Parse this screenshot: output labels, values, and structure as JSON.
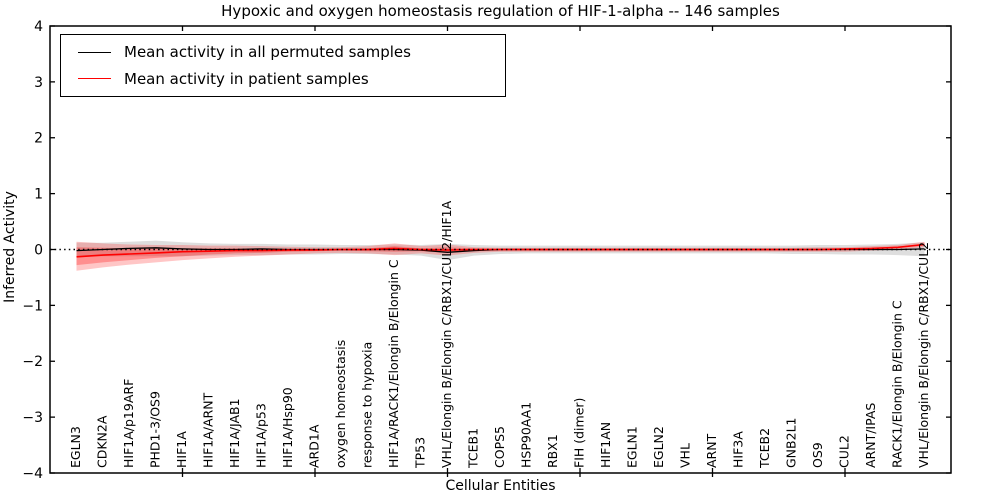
{
  "chart_data": {
    "type": "line",
    "title": "Hypoxic and oxygen homeostasis regulation of HIF-1-alpha -- 146 samples",
    "xlabel": "Cellular Entities",
    "ylabel": "Inferred Activity",
    "ylim": [
      -4,
      4
    ],
    "yticks": [
      4,
      3,
      2,
      1,
      0,
      -1,
      -2,
      -3,
      -4
    ],
    "xtick_indices": [
      4,
      9,
      14,
      19,
      24,
      29
    ],
    "grid": false,
    "legend_position": "upper left",
    "zero_line": {
      "style": "dotted",
      "color": "#000000",
      "y": 0
    },
    "categories": [
      "EGLN3",
      "CDKN2A",
      "HIF1A/p19ARF",
      "PHD1-3/OS9",
      "HIF1A",
      "HIF1A/ARNT",
      "HIF1A/JAB1",
      "HIF1A/p53",
      "HIF1A/Hsp90",
      "ARD1A",
      "oxygen homeostasis",
      "response to hypoxia",
      "HIF1A/RACK1/Elongin B/Elongin C",
      "TP53",
      "VHL/Elongin B/Elongin C/RBX1/CUL2/HIF1A",
      "TCEB1",
      "COPS5",
      "HSP90AA1",
      "RBX1",
      "FIH (dimer)",
      "HIF1AN",
      "EGLN1",
      "EGLN2",
      "VHL",
      "ARNT",
      "HIF3A",
      "TCEB2",
      "GNB2L1",
      "OS9",
      "CUL2",
      "ARNT/IPAS",
      "RACK1/Elongin B/Elongin C",
      "VHL/Elongin B/Elongin C/RBX1/CUL2"
    ],
    "series": [
      {
        "name": "Mean activity in all permuted samples",
        "color": "#000000",
        "values": [
          -0.02,
          0.0,
          0.02,
          0.03,
          0.01,
          0.0,
          0.0,
          0.01,
          0.0,
          0.0,
          0.0,
          0.0,
          0.0,
          -0.01,
          -0.05,
          -0.02,
          0.0,
          0.0,
          0.0,
          0.0,
          0.0,
          0.0,
          0.0,
          0.0,
          0.0,
          0.0,
          0.0,
          0.0,
          0.0,
          0.0,
          0.0,
          0.0,
          0.01
        ]
      },
      {
        "name": "Mean activity in patient samples",
        "color": "#ff0000",
        "values": [
          -0.13,
          -0.1,
          -0.08,
          -0.06,
          -0.04,
          -0.03,
          -0.02,
          -0.02,
          -0.01,
          -0.01,
          0.0,
          0.0,
          0.02,
          0.0,
          -0.01,
          0.0,
          0.0,
          0.0,
          0.0,
          0.0,
          0.0,
          0.0,
          0.0,
          0.0,
          0.0,
          0.0,
          0.0,
          0.0,
          0.0,
          0.01,
          0.02,
          0.04,
          0.09
        ]
      }
    ],
    "bands": [
      {
        "name": "permuted-samples-spread",
        "color": "#999999",
        "opacity": 0.32,
        "upper": [
          0.12,
          0.12,
          0.14,
          0.16,
          0.13,
          0.11,
          0.1,
          0.1,
          0.09,
          0.09,
          0.08,
          0.08,
          0.09,
          0.08,
          0.1,
          0.08,
          0.07,
          0.07,
          0.07,
          0.07,
          0.07,
          0.07,
          0.07,
          0.07,
          0.07,
          0.07,
          0.07,
          0.07,
          0.08,
          0.08,
          0.09,
          0.1,
          0.13
        ],
        "lower": [
          -0.13,
          -0.12,
          -0.12,
          -0.12,
          -0.12,
          -0.11,
          -0.1,
          -0.1,
          -0.09,
          -0.09,
          -0.08,
          -0.08,
          -0.09,
          -0.11,
          -0.19,
          -0.11,
          -0.08,
          -0.07,
          -0.07,
          -0.07,
          -0.07,
          -0.07,
          -0.07,
          -0.07,
          -0.07,
          -0.07,
          -0.07,
          -0.08,
          -0.08,
          -0.09,
          -0.09,
          -0.1,
          -0.12
        ]
      },
      {
        "name": "patient-samples-spread-outer",
        "color": "#ff3333",
        "opacity": 0.28,
        "upper": [
          0.14,
          0.11,
          0.09,
          0.08,
          0.08,
          0.07,
          0.07,
          0.06,
          0.05,
          0.04,
          0.04,
          0.06,
          0.11,
          0.06,
          0.09,
          0.04,
          0.03,
          0.03,
          0.03,
          0.03,
          0.03,
          0.03,
          0.03,
          0.03,
          0.03,
          0.03,
          0.03,
          0.03,
          0.04,
          0.04,
          0.06,
          0.08,
          0.14
        ],
        "lower": [
          -0.38,
          -0.32,
          -0.27,
          -0.23,
          -0.19,
          -0.16,
          -0.13,
          -0.11,
          -0.09,
          -0.07,
          -0.06,
          -0.07,
          -0.1,
          -0.07,
          -0.11,
          -0.06,
          -0.04,
          -0.04,
          -0.04,
          -0.04,
          -0.04,
          -0.04,
          -0.04,
          -0.04,
          -0.04,
          -0.04,
          -0.04,
          -0.04,
          -0.04,
          -0.04,
          -0.02,
          0.0,
          0.04
        ]
      },
      {
        "name": "patient-samples-spread-inner",
        "color": "#ff0000",
        "opacity": 0.28,
        "upper": [
          0.04,
          0.03,
          0.02,
          0.02,
          0.02,
          0.02,
          0.02,
          0.01,
          0.01,
          0.01,
          0.01,
          0.02,
          0.06,
          0.02,
          0.04,
          0.02,
          0.01,
          0.01,
          0.01,
          0.01,
          0.01,
          0.01,
          0.01,
          0.01,
          0.01,
          0.01,
          0.01,
          0.01,
          0.01,
          0.02,
          0.03,
          0.05,
          0.11
        ],
        "lower": [
          -0.28,
          -0.23,
          -0.19,
          -0.15,
          -0.12,
          -0.09,
          -0.07,
          -0.06,
          -0.04,
          -0.03,
          -0.02,
          -0.03,
          -0.04,
          -0.03,
          -0.06,
          -0.02,
          -0.02,
          -0.02,
          -0.02,
          -0.02,
          -0.02,
          -0.02,
          -0.02,
          -0.02,
          -0.02,
          -0.02,
          -0.02,
          -0.02,
          -0.02,
          -0.01,
          0.0,
          0.03,
          0.07
        ]
      }
    ]
  }
}
